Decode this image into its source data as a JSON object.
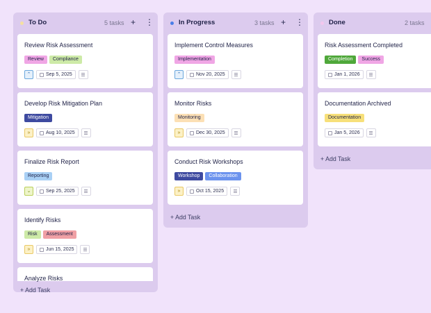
{
  "columns": {
    "todo": {
      "title": "To Do",
      "count": "5 tasks",
      "dot_color": "#f5e0a0",
      "add_label": "+ Add Task",
      "cards": [
        {
          "title": "Review Risk Assessment",
          "tags": [
            {
              "label": "Review",
              "bg": "#f0a6e5"
            },
            {
              "label": "Compliance",
              "bg": "#cdeaa7"
            }
          ],
          "priority": "up",
          "date": "Sep 5, 2025"
        },
        {
          "title": "Develop Risk Mitigation Plan",
          "tags": [
            {
              "label": "Mitigation",
              "bg": "#3e4aa0",
              "fg": "#ffffff"
            }
          ],
          "priority": "double-up",
          "date": "Aug 10, 2025"
        },
        {
          "title": "Finalize Risk Report",
          "tags": [
            {
              "label": "Reporting",
              "bg": "#a9d0f5"
            }
          ],
          "priority": "down",
          "date": "Sep 25, 2025"
        },
        {
          "title": "Identify Risks",
          "tags": [
            {
              "label": "Risk",
              "bg": "#cdeaa7"
            },
            {
              "label": "Assessment",
              "bg": "#f0a0a5"
            }
          ],
          "priority": "double-up",
          "date": "Jun 15, 2025"
        },
        {
          "title": "Analyze Risks",
          "tags": [],
          "priority": "",
          "date": ""
        }
      ]
    },
    "inprogress": {
      "title": "In Progress",
      "count": "3 tasks",
      "dot_color": "#4a7ee8",
      "add_label": "+ Add Task",
      "cards": [
        {
          "title": "Implement Control Measures",
          "tags": [
            {
              "label": "Implementation",
              "bg": "#f0a6e5"
            }
          ],
          "priority": "up",
          "date": "Nov 20, 2025"
        },
        {
          "title": "Monitor Risks",
          "tags": [
            {
              "label": "Monitoring",
              "bg": "#fce0b5"
            }
          ],
          "priority": "double-up",
          "date": "Dec 30, 2025"
        },
        {
          "title": "Conduct Risk Workshops",
          "tags": [
            {
              "label": "Workshop",
              "bg": "#3e4aa0",
              "fg": "#ffffff"
            },
            {
              "label": "Collaboration",
              "bg": "#6c93ee",
              "fg": "#ffffff"
            }
          ],
          "priority": "double-up",
          "date": "Oct 15, 2025"
        }
      ]
    },
    "done": {
      "title": "Done",
      "count": "2 tasks",
      "dot_color": "#f3c6ee",
      "add_label": "+ Add Task",
      "cards": [
        {
          "title": "Risk Assessment Completed",
          "tags": [
            {
              "label": "Completion",
              "bg": "#4fa83a",
              "fg": "#ffffff"
            },
            {
              "label": "Success",
              "bg": "#f0a6e5"
            }
          ],
          "priority": "",
          "date": "Jan 1, 2026"
        },
        {
          "title": "Documentation Archived",
          "tags": [
            {
              "label": "Documentation",
              "bg": "#f7e07a"
            }
          ],
          "priority": "",
          "date": "Jan 5, 2026"
        }
      ]
    }
  },
  "icons": {
    "add": "plus-icon",
    "menu": "kebab-menu-icon",
    "date": "calendar-icon",
    "notes": "notes-icon"
  }
}
